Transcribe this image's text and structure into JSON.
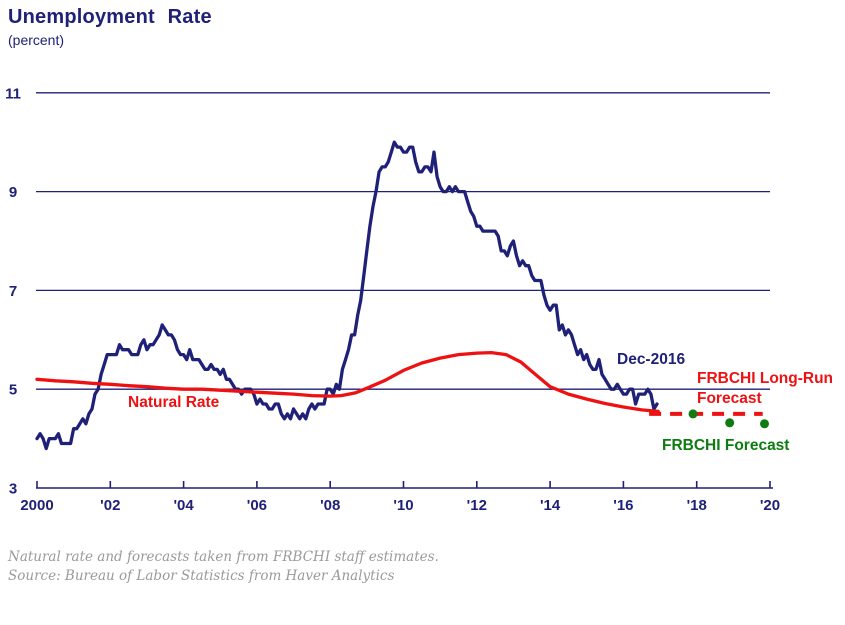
{
  "header": {
    "title": "Unemployment Rate",
    "subtitle": "(percent)"
  },
  "colors": {
    "navy": "#1f2178",
    "red": "#ee1111",
    "green": "#0e7c11",
    "grid": "#1f2178",
    "footnote_gray": "#9a9a9a",
    "background": "#ffffff"
  },
  "annotations": {
    "dec2016": "Dec-2016",
    "natural_rate": "Natural Rate",
    "long_run_line1": "FRBCHI Long-Run",
    "long_run_line2": "Forecast",
    "frbchi_forecast": "FRBCHI Forecast"
  },
  "footnote": {
    "line1": "Natural rate and forecasts taken from FRBCHI staff estimates.",
    "line2": "Source: Bureau of Labor Statistics from Haver Analytics"
  },
  "chart_data": {
    "type": "line",
    "title": "Unemployment Rate",
    "subtitle": "(percent)",
    "xlabel": "",
    "ylabel": "percent",
    "xlim": [
      2000,
      2020.2
    ],
    "ylim": [
      3,
      11
    ],
    "yticks": [
      3,
      5,
      7,
      9,
      11
    ],
    "gridlines_y": [
      5,
      7,
      9,
      11
    ],
    "grid": "horizontal",
    "legend_position": "inline-annotations",
    "xticks": [
      {
        "year": 2000,
        "label": "2000"
      },
      {
        "year": 2002,
        "label": "'02"
      },
      {
        "year": 2004,
        "label": "'04"
      },
      {
        "year": 2006,
        "label": "'06"
      },
      {
        "year": 2008,
        "label": "'08"
      },
      {
        "year": 2010,
        "label": "'10"
      },
      {
        "year": 2012,
        "label": "'12"
      },
      {
        "year": 2014,
        "label": "'14"
      },
      {
        "year": 2016,
        "label": "'16"
      },
      {
        "year": 2018,
        "label": "'18"
      },
      {
        "year": 2020,
        "label": "'20"
      }
    ],
    "series": [
      {
        "name": "Unemployment Rate",
        "type": "line",
        "style": "solid",
        "color_key": "navy",
        "x_start": 2000,
        "x_step": 0.0833333,
        "values": [
          4.0,
          4.1,
          4.0,
          3.8,
          4.0,
          4.0,
          4.0,
          4.1,
          3.9,
          3.9,
          3.9,
          3.9,
          4.2,
          4.2,
          4.3,
          4.4,
          4.3,
          4.5,
          4.6,
          4.9,
          5.0,
          5.3,
          5.5,
          5.7,
          5.7,
          5.7,
          5.7,
          5.9,
          5.8,
          5.8,
          5.8,
          5.7,
          5.7,
          5.7,
          5.9,
          6.0,
          5.8,
          5.9,
          5.9,
          6.0,
          6.1,
          6.3,
          6.2,
          6.1,
          6.1,
          6.0,
          5.8,
          5.7,
          5.7,
          5.6,
          5.8,
          5.6,
          5.6,
          5.6,
          5.5,
          5.4,
          5.4,
          5.5,
          5.4,
          5.4,
          5.3,
          5.4,
          5.2,
          5.2,
          5.1,
          5.0,
          5.0,
          4.9,
          5.0,
          5.0,
          5.0,
          4.9,
          4.7,
          4.8,
          4.7,
          4.7,
          4.6,
          4.6,
          4.7,
          4.7,
          4.5,
          4.4,
          4.5,
          4.4,
          4.6,
          4.5,
          4.4,
          4.5,
          4.4,
          4.6,
          4.7,
          4.6,
          4.7,
          4.7,
          4.7,
          5.0,
          5.0,
          4.9,
          5.1,
          5.0,
          5.4,
          5.6,
          5.8,
          6.1,
          6.1,
          6.5,
          6.8,
          7.3,
          7.8,
          8.3,
          8.7,
          9.0,
          9.4,
          9.5,
          9.5,
          9.6,
          9.8,
          10.0,
          9.9,
          9.9,
          9.8,
          9.8,
          9.9,
          9.9,
          9.6,
          9.4,
          9.4,
          9.5,
          9.5,
          9.4,
          9.8,
          9.3,
          9.1,
          9.0,
          9.0,
          9.1,
          9.0,
          9.1,
          9.0,
          9.0,
          9.0,
          8.8,
          8.6,
          8.5,
          8.3,
          8.3,
          8.2,
          8.2,
          8.2,
          8.2,
          8.2,
          8.1,
          7.8,
          7.8,
          7.7,
          7.9,
          8.0,
          7.7,
          7.5,
          7.6,
          7.5,
          7.5,
          7.3,
          7.2,
          7.2,
          7.2,
          6.9,
          6.7,
          6.6,
          6.7,
          6.7,
          6.2,
          6.3,
          6.1,
          6.2,
          6.1,
          5.9,
          5.7,
          5.8,
          5.6,
          5.7,
          5.5,
          5.4,
          5.4,
          5.6,
          5.3,
          5.2,
          5.1,
          5.0,
          5.0,
          5.1,
          5.0,
          4.9,
          4.9,
          5.0,
          5.0,
          4.7,
          4.9,
          4.9,
          4.9,
          5.0,
          4.9,
          4.6,
          4.7
        ],
        "last_point_label": "Dec-2016",
        "last_point_value": 4.7
      },
      {
        "name": "Natural Rate",
        "type": "line",
        "style": "solid",
        "color_key": "red",
        "x": [
          2000,
          2000.5,
          2001,
          2001.5,
          2002,
          2002.5,
          2003,
          2003.5,
          2004,
          2004.5,
          2005,
          2005.5,
          2006,
          2006.5,
          2007,
          2007.5,
          2008,
          2008.3,
          2008.7,
          2009,
          2009.5,
          2010,
          2010.5,
          2011,
          2011.5,
          2012,
          2012.4,
          2012.8,
          2013.2,
          2013.6,
          2014,
          2014.5,
          2015,
          2015.5,
          2016,
          2016.5,
          2016.95
        ],
        "values": [
          5.2,
          5.17,
          5.15,
          5.12,
          5.1,
          5.07,
          5.05,
          5.02,
          5.0,
          5.0,
          4.98,
          4.96,
          4.94,
          4.92,
          4.9,
          4.87,
          4.86,
          4.87,
          4.93,
          5.02,
          5.18,
          5.38,
          5.53,
          5.63,
          5.7,
          5.73,
          5.74,
          5.7,
          5.55,
          5.3,
          5.05,
          4.9,
          4.8,
          4.71,
          4.64,
          4.58,
          4.55
        ]
      },
      {
        "name": "FRBCHI Long-Run Forecast",
        "type": "line",
        "style": "dashed",
        "color_key": "red",
        "x": [
          2016.7,
          2019.8
        ],
        "values": [
          4.5,
          4.5
        ]
      },
      {
        "name": "FRBCHI Forecast",
        "type": "scatter",
        "color_key": "green",
        "x": [
          2017.9,
          2018.9,
          2019.85
        ],
        "values": [
          4.5,
          4.32,
          4.3
        ]
      }
    ]
  }
}
